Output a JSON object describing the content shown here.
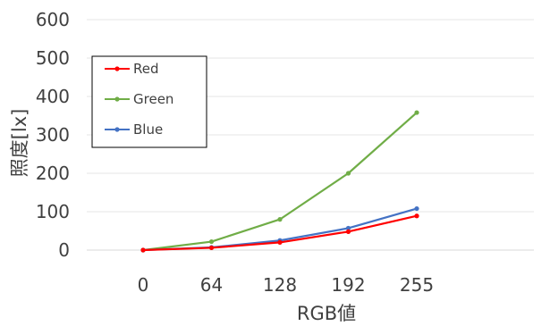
{
  "chart_data": {
    "type": "line",
    "x": [
      "0",
      "64",
      "128",
      "192",
      "255"
    ],
    "xlabel": "RGB値",
    "ylabel": "照度[lx]",
    "ylim": [
      0,
      600
    ],
    "yticks": [
      "0",
      "100",
      "200",
      "300",
      "400",
      "500",
      "600"
    ],
    "grid": true,
    "legend_position": "top-left",
    "series": [
      {
        "name": "Red",
        "color": "#ff0000",
        "values": [
          0,
          6,
          20,
          48,
          89
        ]
      },
      {
        "name": "Green",
        "color": "#70ad47",
        "values": [
          0,
          22,
          80,
          200,
          358
        ]
      },
      {
        "name": "Blue",
        "color": "#4472c4",
        "values": [
          0,
          7,
          25,
          57,
          108
        ]
      }
    ]
  }
}
